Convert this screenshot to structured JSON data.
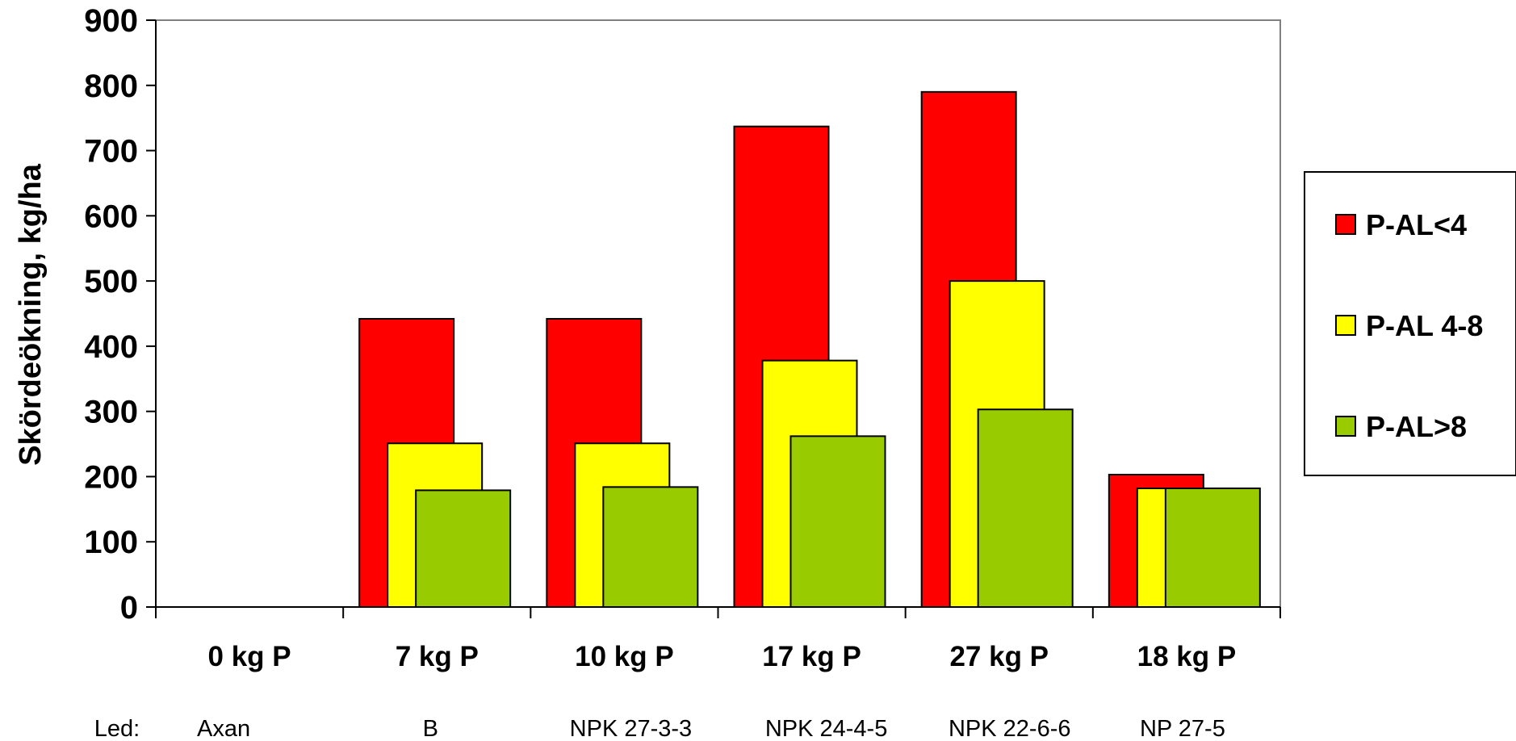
{
  "chart_data": {
    "type": "bar",
    "title": "",
    "ylabel": "Skördeökning, kg/ha",
    "xlabel": "",
    "ylim": [
      0,
      900
    ],
    "yticks": [
      0,
      100,
      200,
      300,
      400,
      500,
      600,
      700,
      800,
      900
    ],
    "categories": [
      "0 kg P",
      "7 kg P",
      "10 kg P",
      "17 kg P",
      "27 kg P",
      "18 kg P"
    ],
    "sub_label_prefix": "Led:",
    "sub_labels": [
      "Axan",
      "B",
      "NPK 27-3-3",
      "NPK 24-4-5",
      "NPK 22-6-6",
      "NP 27-5"
    ],
    "series": [
      {
        "name": "P-AL<4",
        "color": "#ff0000",
        "values": [
          0,
          442,
          442,
          737,
          790,
          203
        ]
      },
      {
        "name": "P-AL 4-8",
        "color": "#ffff00",
        "values": [
          0,
          251,
          251,
          378,
          500,
          182
        ]
      },
      {
        "name": "P-AL>8",
        "color": "#99cc00",
        "values": [
          0,
          179,
          184,
          262,
          303,
          182
        ]
      }
    ],
    "grid": false,
    "legend_position": "right"
  }
}
